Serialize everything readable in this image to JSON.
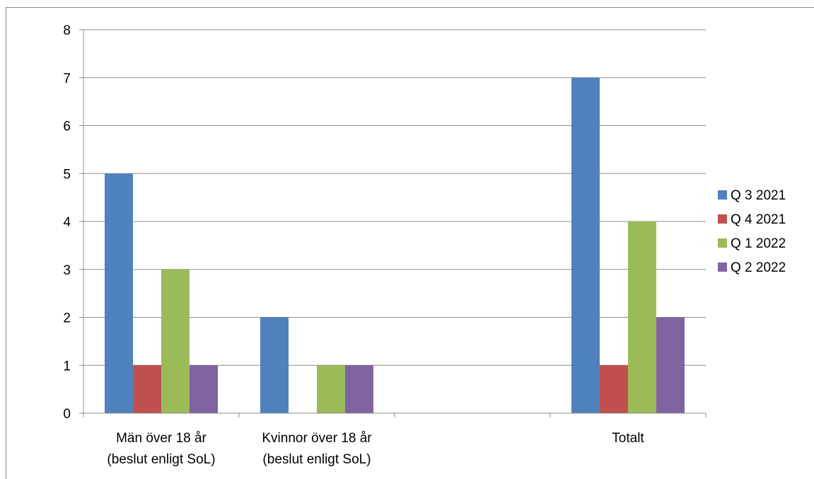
{
  "chart_data": {
    "type": "bar",
    "categories": [
      [
        "Män över 18 år",
        "(beslut enligt SoL)"
      ],
      [
        "Kvinnor över 18 år",
        "(beslut enligt SoL)"
      ],
      [
        ""
      ],
      [
        "Totalt"
      ]
    ],
    "series": [
      {
        "name": "Q 3 2021",
        "color": "#4f81bd",
        "values": [
          5,
          2,
          0,
          7
        ]
      },
      {
        "name": "Q 4 2021",
        "color": "#c0504d",
        "values": [
          1,
          0,
          0,
          1
        ]
      },
      {
        "name": "Q 1 2022",
        "color": "#9bbb59",
        "values": [
          3,
          1,
          0,
          4
        ]
      },
      {
        "name": "Q 2 2022",
        "color": "#8064a2",
        "values": [
          1,
          1,
          0,
          2
        ]
      }
    ],
    "ylim": [
      0,
      8
    ],
    "yticks": [
      "0",
      "1",
      "2",
      "3",
      "4",
      "5",
      "6",
      "7",
      "8"
    ],
    "grid": true,
    "legend": "right"
  }
}
